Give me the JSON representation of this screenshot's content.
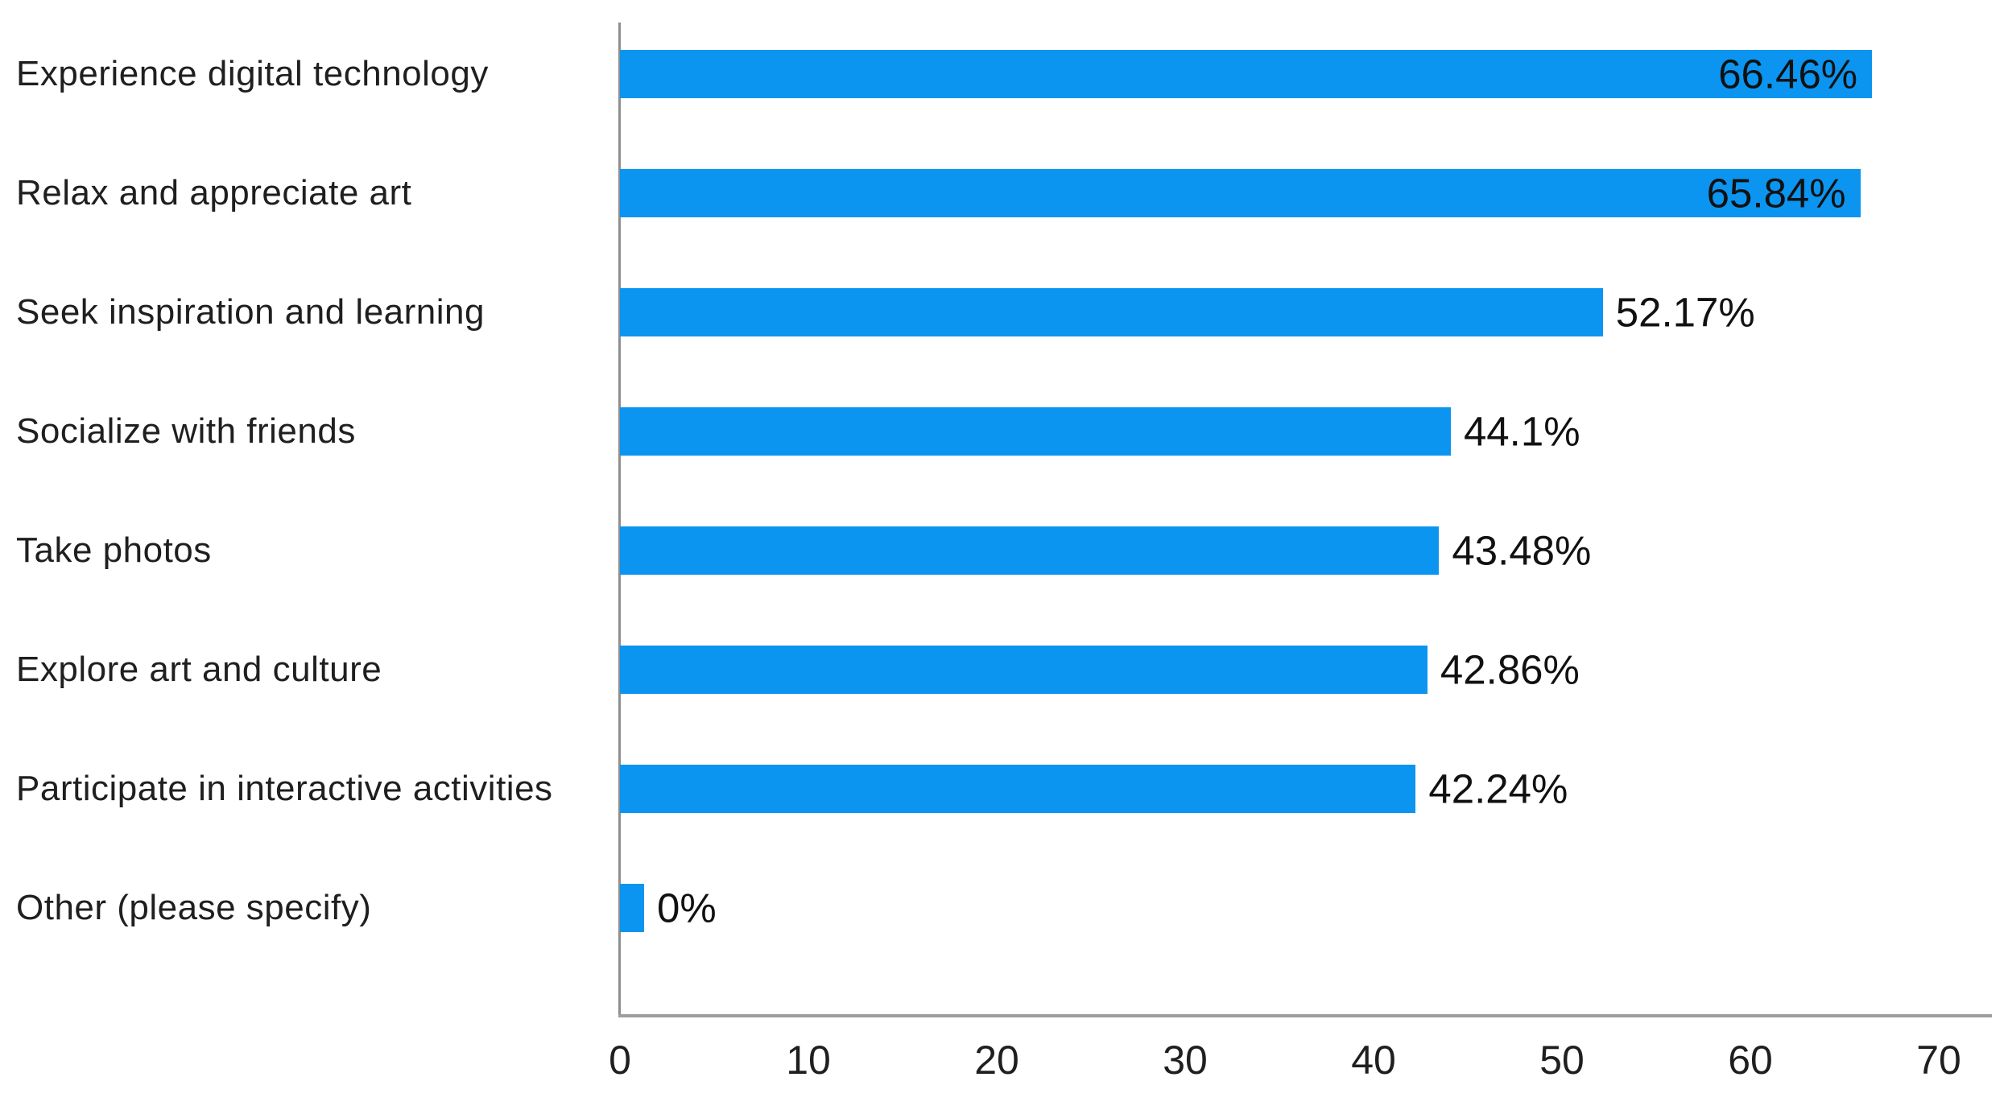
{
  "chart_data": {
    "type": "bar",
    "orientation": "horizontal",
    "title": "",
    "xlabel": "",
    "ylabel": "",
    "categories": [
      "Experience digital technology",
      "Relax and appreciate art",
      "Seek inspiration and learning",
      "Socialize with friends",
      "Take photos",
      "Explore art and culture",
      "Participate in interactive activities",
      "Other (please specify)"
    ],
    "values": [
      66.46,
      65.84,
      52.17,
      44.1,
      43.48,
      42.86,
      42.24,
      0
    ],
    "value_labels": [
      "66.46%",
      "65.84%",
      "52.17%",
      "44.1%",
      "43.48%",
      "42.86%",
      "42.24%",
      "0%"
    ],
    "xlim": [
      0,
      70
    ],
    "x_ticks": [
      0,
      10,
      20,
      30,
      40,
      50,
      60,
      70
    ],
    "x_tick_labels": [
      "0",
      "10",
      "20",
      "30",
      "40",
      "50",
      "60",
      "70"
    ],
    "grid": false,
    "legend": "none",
    "bar_color": "#0b95f0",
    "axis_color": "#8f8f8f",
    "text_color": "#1f1f1f",
    "label_inside_threshold": 60
  },
  "layout_note_values_shown_as": "data labels at end of each bar; top two labels drawn inside bars"
}
